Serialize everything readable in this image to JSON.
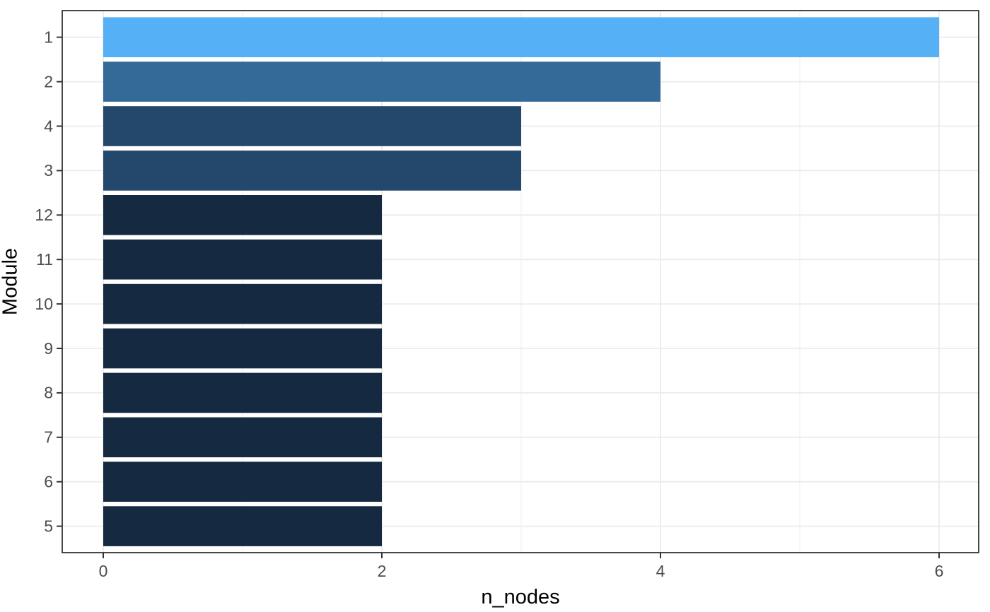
{
  "chart_data": {
    "type": "bar",
    "orientation": "horizontal",
    "title": "",
    "xlabel": "n_nodes",
    "ylabel": "Module",
    "categories": [
      "1",
      "2",
      "4",
      "3",
      "12",
      "11",
      "10",
      "9",
      "8",
      "7",
      "6",
      "5"
    ],
    "values": [
      6,
      4,
      3,
      3,
      2,
      2,
      2,
      2,
      2,
      2,
      2,
      2
    ],
    "bar_colors": [
      "#56B0F5",
      "#336A98",
      "#23486B",
      "#23486B",
      "#152A40",
      "#152A40",
      "#152A40",
      "#152A40",
      "#152A40",
      "#152A40",
      "#152A40",
      "#152A40"
    ],
    "x_ticks": [
      0,
      2,
      4,
      6
    ],
    "x_minor_ticks": [
      1,
      3,
      5
    ],
    "xlim": [
      0,
      6
    ],
    "grid": "on",
    "legend": "none",
    "colors": {
      "fill_high": "#56B0F5",
      "fill_low": "#152A40",
      "grid_major": "#EBEBEB",
      "grid_minor": "#F4F4F4",
      "panel_border": "#333333",
      "tick_mark": "#333333",
      "tick_label": "#4D4D4D",
      "axis_title": "#000000",
      "panel_background": "#FFFFFF"
    }
  }
}
